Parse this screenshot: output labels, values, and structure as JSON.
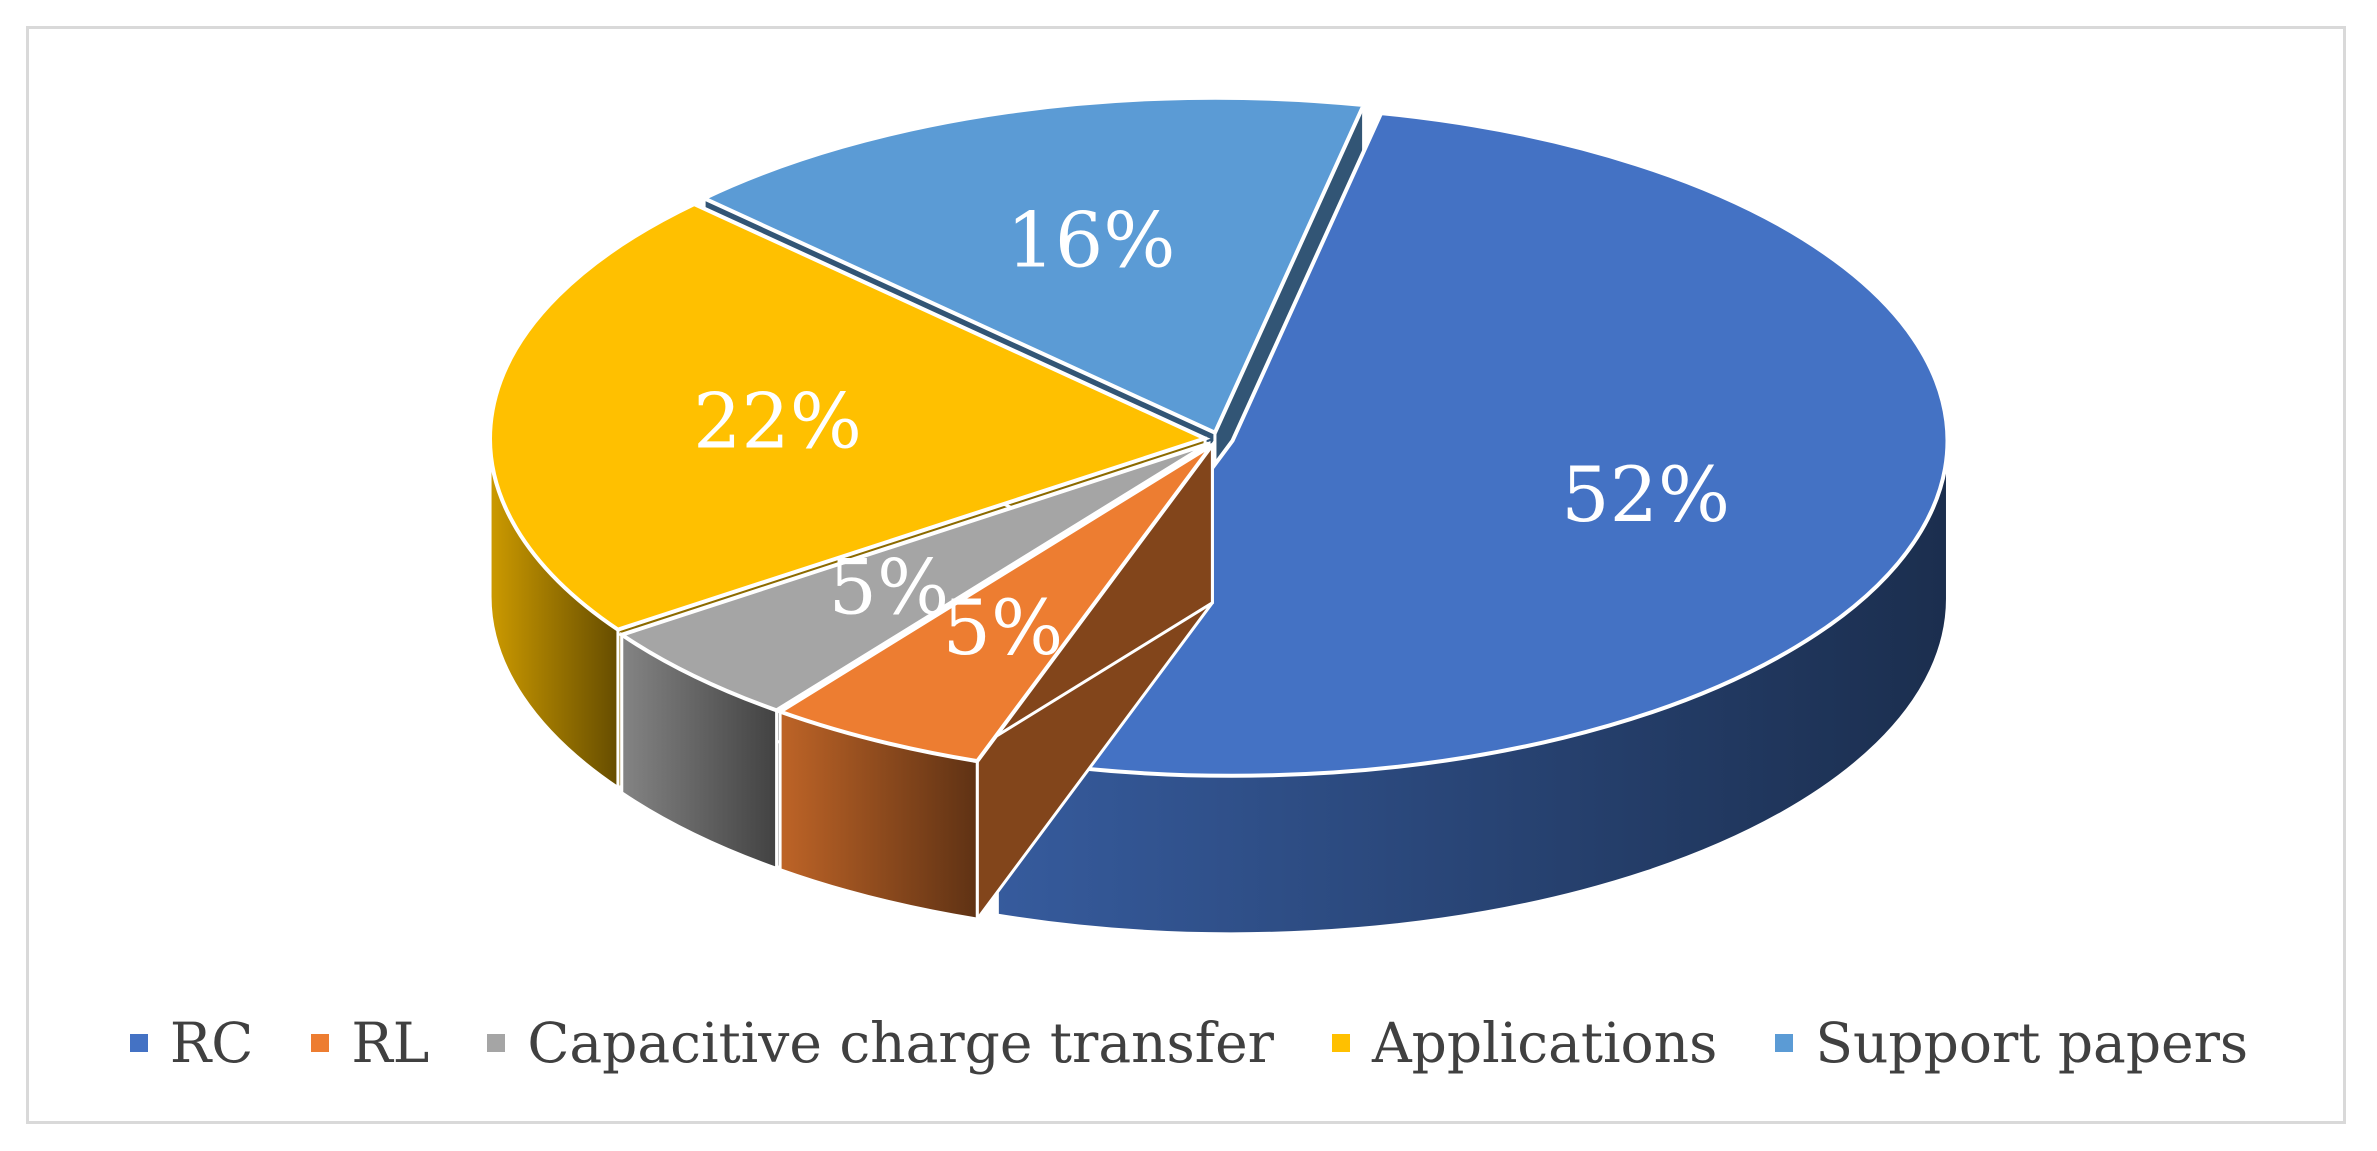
{
  "chart_data": {
    "type": "pie",
    "style": "3d-exploded",
    "categories": [
      "RC",
      "RL",
      "Capacitive charge transfer",
      "Applications",
      "Support papers"
    ],
    "values": [
      52,
      5,
      5,
      22,
      16
    ],
    "labels": [
      "52%",
      "5%",
      "5%",
      "22%",
      "16%"
    ],
    "colors": [
      "#4472c4",
      "#ed7d31",
      "#a5a5a5",
      "#ffc000",
      "#5b9bd5"
    ],
    "legend_position": "bottom",
    "title": ""
  }
}
